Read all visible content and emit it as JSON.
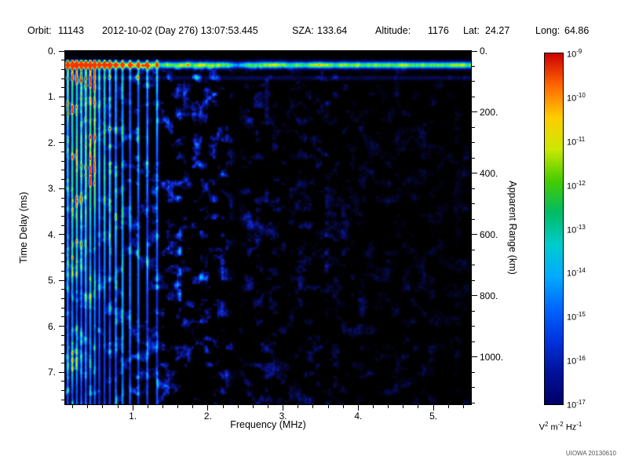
{
  "header": {
    "orbit_label": "Orbit:",
    "orbit_value": "11143",
    "datetime": "2012-10-02 (Day 276) 13:07:53.445",
    "sza_label": "SZA:",
    "sza_value": "133.64",
    "altitude_label": "Altitude:",
    "altitude_value": "1176",
    "lat_label": "Lat:",
    "lat_value": "24.27",
    "long_label": "Long:",
    "long_value": "64.86"
  },
  "footer": {
    "credit": "UIOWA 20130610"
  },
  "chart_data": {
    "type": "heatmap",
    "description": "Radar sounder ionogram spectrogram: received spectral density vs frequency and time delay",
    "xlabel": "Frequency (MHz)",
    "x_range": [
      0.1,
      5.5
    ],
    "x_ticks": [
      "1.",
      "2.",
      "3.",
      "4.",
      "5."
    ],
    "x_tick_values": [
      1,
      2,
      3,
      4,
      5
    ],
    "ylabel_left": "Time Delay (ms)",
    "y_range_ms": [
      0,
      7.7
    ],
    "y_ticks_ms": [
      "0.",
      "1.",
      "2.",
      "3.",
      "4.",
      "5.",
      "6.",
      "7."
    ],
    "y_tick_values_ms": [
      0,
      1,
      2,
      3,
      4,
      5,
      6,
      7
    ],
    "ylabel_right": "Apparent Range (km)",
    "y_range_km": [
      0,
      1155
    ],
    "y_ticks_km": [
      "0.",
      "200.",
      "400.",
      "600.",
      "800.",
      "1000."
    ],
    "y_tick_values_km": [
      0,
      200,
      400,
      600,
      800,
      1000
    ],
    "grid": false,
    "colorbar": {
      "unit_text": "V^2 m^-2 Hz^-1",
      "unit_parts": [
        {
          "t": "V",
          "e": "2"
        },
        {
          "t": " m",
          "e": "-2"
        },
        {
          "t": " Hz",
          "e": "-1"
        }
      ],
      "tick_base": "10",
      "tick_exponents": [
        "-9",
        "-10",
        "-11",
        "-12",
        "-13",
        "-14",
        "-15",
        "-16",
        "-17"
      ],
      "scale": "log",
      "range": [
        1e-17,
        1e-09
      ],
      "gradient": [
        "#cc0000",
        "#ff6600",
        "#ffcc00",
        "#cce800",
        "#44cc00",
        "#00bb66",
        "#00cccc",
        "#00aaff",
        "#0066ff",
        "#0033dd",
        "#001199",
        "#000066"
      ]
    },
    "colormap": [
      [
        0.0,
        0,
        0,
        0
      ],
      [
        0.08,
        4,
        4,
        30
      ],
      [
        0.22,
        8,
        16,
        120
      ],
      [
        0.38,
        16,
        48,
        220
      ],
      [
        0.52,
        0,
        130,
        255
      ],
      [
        0.63,
        0,
        210,
        220
      ],
      [
        0.74,
        30,
        225,
        110
      ],
      [
        0.84,
        150,
        240,
        20
      ],
      [
        0.92,
        250,
        235,
        0
      ],
      [
        1.0,
        255,
        50,
        0
      ]
    ],
    "features": [
      {
        "name": "surface-reflection-band",
        "description": "Bright horizontal echo band at ~0.3 ms delay spanning all frequencies; strongest (green/yellow) below ~1.2 MHz, thin cyan-green line at higher frequencies"
      },
      {
        "name": "plasma-harmonic-stripes",
        "description": "Many narrow bright cyan/green vertical lines below ~1.3 MHz extending over the full delay range"
      },
      {
        "name": "diffuse-echo-band",
        "description": "Broad diffuse blue speckle region between ~1.4 and 2.3 MHz"
      },
      {
        "name": "attenuation-gap",
        "description": "Dark vertical gap near 2.35-2.45 MHz cutting through the noise"
      },
      {
        "name": "background-speckle",
        "description": "Sparse dark-blue noise blobs over black background, density decreasing toward higher frequency"
      }
    ],
    "render": {
      "seed": 20130610,
      "stripe_freqs": [
        0.13,
        0.19,
        0.25,
        0.31,
        0.37,
        0.43,
        0.49,
        0.55,
        0.62,
        0.69,
        0.77,
        0.86,
        0.96,
        1.07,
        1.19,
        1.32
      ],
      "stripe_sigma": 0.013,
      "band_delay": 0.3,
      "band_sigma": 0.055,
      "band2_delay": 0.58,
      "gap_center": 2.39,
      "gap_sigma": 0.055,
      "gap_depth": 0.85,
      "diffuse_center": 1.8,
      "diffuse_sigma": 0.42,
      "diffuse_amp": 0.2
    }
  }
}
